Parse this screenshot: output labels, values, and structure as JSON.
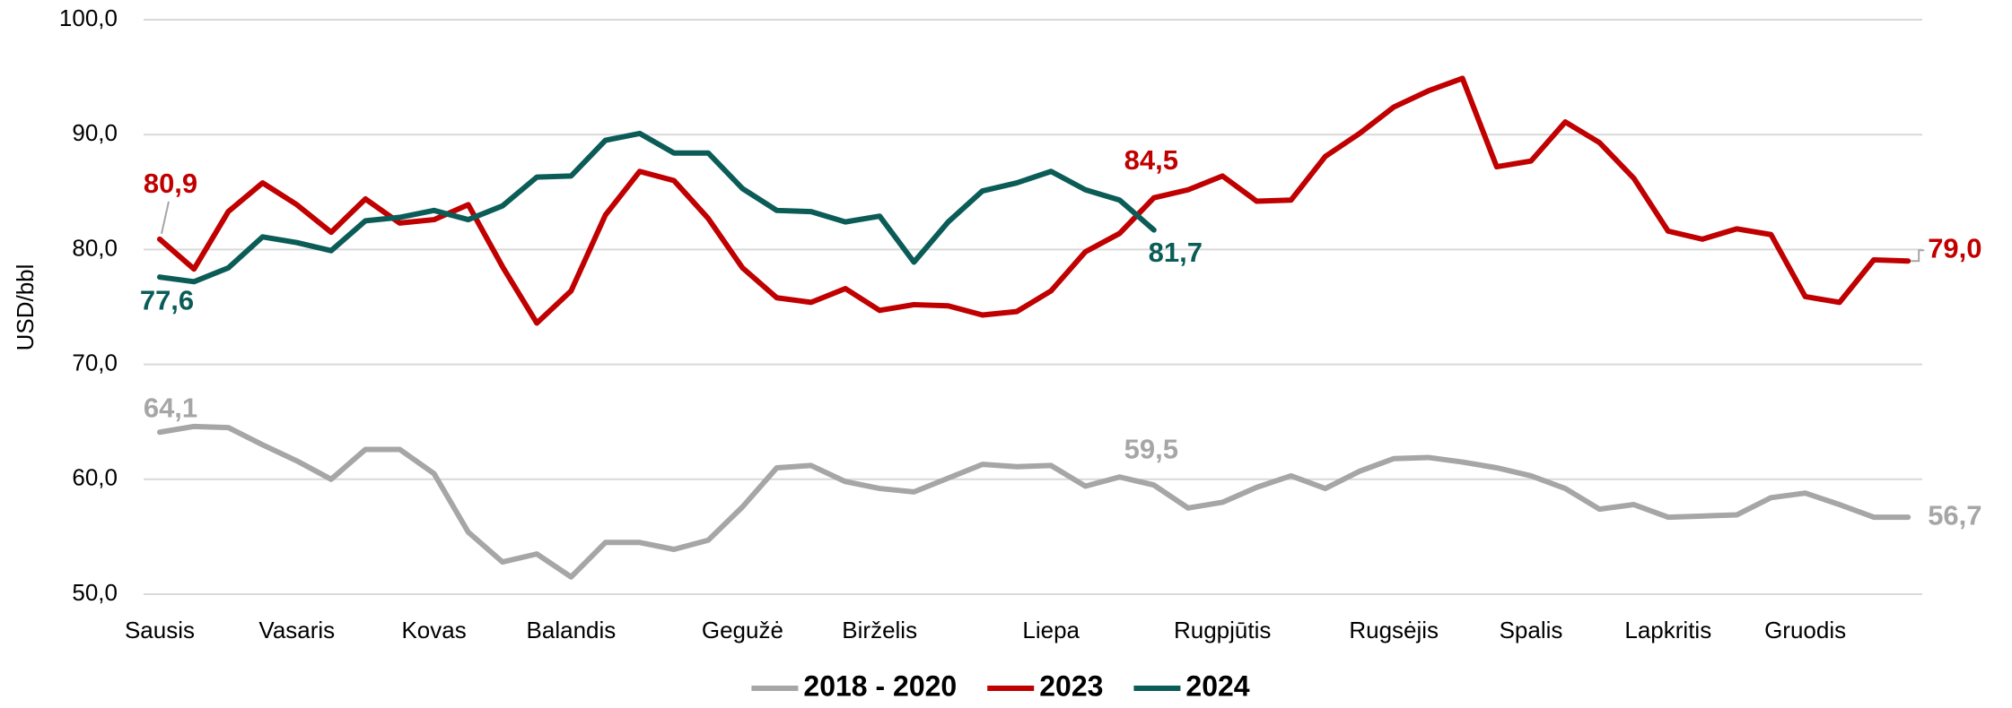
{
  "chart_data": {
    "type": "line",
    "y_axis_label": "USD/bbl",
    "categories": [
      "Sausis",
      null,
      null,
      null,
      "Vasaris",
      null,
      null,
      null,
      "Kovas",
      null,
      null,
      null,
      "Balandis",
      null,
      null,
      null,
      null,
      "Gegužė",
      null,
      null,
      null,
      "Birželis",
      null,
      null,
      null,
      null,
      "Liepa",
      null,
      null,
      null,
      null,
      "Rugpjūtis",
      null,
      null,
      null,
      null,
      "Rugsėjis",
      null,
      null,
      null,
      "Spalis",
      null,
      null,
      null,
      "Lapkritis",
      null,
      null,
      null,
      "Gruodis",
      null,
      null,
      null
    ],
    "series": [
      {
        "name": "2018 - 2020",
        "color": "#a6a6a6",
        "values": [
          64.1,
          64.6,
          64.5,
          63.0,
          61.6,
          60.0,
          62.6,
          62.6,
          60.5,
          55.4,
          52.8,
          53.5,
          51.5,
          54.5,
          54.5,
          53.9,
          54.7,
          57.6,
          61.0,
          61.2,
          59.8,
          59.2,
          58.9,
          60.1,
          61.3,
          61.1,
          61.2,
          59.4,
          60.2,
          59.5,
          57.5,
          58.0,
          59.3,
          60.3,
          59.2,
          60.7,
          61.8,
          61.9,
          61.5,
          61.0,
          60.3,
          59.2,
          57.4,
          57.8,
          56.7,
          56.8,
          56.9,
          58.4,
          58.8,
          57.8,
          56.7,
          56.7
        ],
        "value_labels": [
          "64,1",
          null,
          null,
          null,
          null,
          null,
          null,
          null,
          null,
          null,
          null,
          null,
          null,
          null,
          null,
          null,
          null,
          null,
          null,
          null,
          null,
          null,
          null,
          null,
          null,
          null,
          null,
          null,
          null,
          "59,5",
          null,
          null,
          null,
          null,
          null,
          null,
          null,
          null,
          null,
          null,
          null,
          null,
          null,
          null,
          null,
          null,
          null,
          null,
          null,
          null,
          null,
          "56,7"
        ]
      },
      {
        "name": "2023",
        "color": "#c00000",
        "values": [
          80.9,
          78.3,
          83.3,
          85.8,
          83.9,
          81.5,
          84.4,
          82.3,
          82.6,
          83.9,
          78.5,
          73.6,
          76.4,
          83.0,
          86.8,
          86.0,
          82.7,
          78.4,
          75.8,
          75.4,
          76.6,
          74.7,
          75.2,
          75.1,
          74.3,
          74.6,
          76.4,
          79.8,
          81.4,
          84.5,
          85.2,
          86.4,
          84.2,
          84.3,
          88.1,
          90.1,
          92.4,
          93.8,
          94.9,
          87.2,
          87.7,
          91.1,
          89.3,
          86.2,
          81.6,
          80.9,
          81.8,
          81.3,
          75.9,
          75.4,
          79.1,
          79.0
        ],
        "value_labels": [
          "80,9",
          null,
          null,
          null,
          null,
          null,
          null,
          null,
          null,
          null,
          null,
          null,
          null,
          null,
          null,
          null,
          null,
          null,
          null,
          null,
          null,
          null,
          null,
          null,
          null,
          null,
          null,
          null,
          null,
          "84,5",
          null,
          null,
          null,
          null,
          null,
          null,
          null,
          null,
          null,
          null,
          null,
          null,
          null,
          null,
          null,
          null,
          null,
          null,
          null,
          null,
          null,
          "79,0"
        ]
      },
      {
        "name": "2024",
        "color": "#0b5c57",
        "values": [
          77.6,
          77.2,
          78.4,
          81.1,
          80.6,
          79.9,
          82.5,
          82.8,
          83.4,
          82.6,
          83.8,
          86.3,
          86.4,
          89.5,
          90.1,
          88.4,
          88.4,
          85.3,
          83.4,
          83.3,
          82.4,
          82.9,
          78.9,
          82.4,
          85.1,
          85.8,
          86.8,
          85.2,
          84.3,
          81.7,
          null,
          null,
          null,
          null,
          null,
          null,
          null,
          null,
          null,
          null,
          null,
          null,
          null,
          null,
          null,
          null,
          null,
          null,
          null,
          null,
          null,
          null
        ],
        "value_labels": [
          "77,6",
          null,
          null,
          null,
          null,
          null,
          null,
          null,
          null,
          null,
          null,
          null,
          null,
          null,
          null,
          null,
          null,
          null,
          null,
          null,
          null,
          null,
          null,
          null,
          null,
          null,
          null,
          null,
          null,
          "81,7",
          null,
          null,
          null,
          null,
          null,
          null,
          null,
          null,
          null,
          null,
          null,
          null,
          null,
          null,
          null,
          null,
          null,
          null,
          null,
          null,
          null,
          null
        ]
      }
    ],
    "ylim": [
      50,
      100
    ],
    "yticks": [
      {
        "value": 50,
        "label": "50,0"
      },
      {
        "value": 60,
        "label": "60,0"
      },
      {
        "value": 70,
        "label": "70,0"
      },
      {
        "value": 80,
        "label": "80,0"
      },
      {
        "value": 90,
        "label": "90,0"
      },
      {
        "value": 100,
        "label": "100,0"
      }
    ],
    "grid": true,
    "legend": "bottom"
  }
}
